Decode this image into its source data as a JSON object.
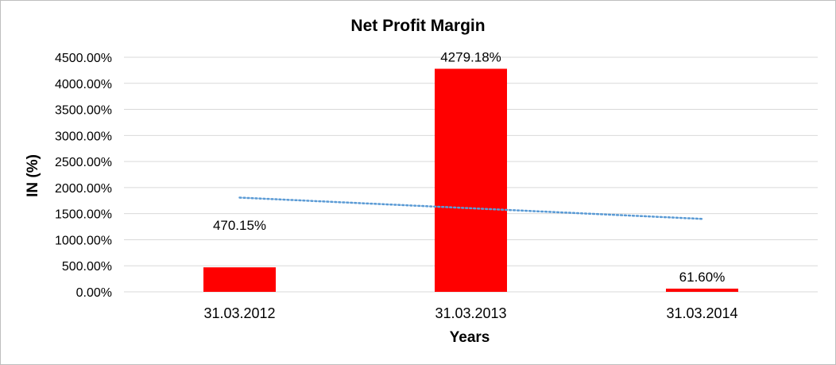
{
  "chart_data": {
    "type": "bar",
    "title": "Net Profit Margin",
    "xlabel": "Years",
    "ylabel": "IN (%)",
    "categories": [
      "31.03.2012",
      "31.03.2013",
      "31.03.2014"
    ],
    "values": [
      470.15,
      4279.18,
      61.6
    ],
    "data_labels": [
      "470.15%",
      "4279.18%",
      "61.60%"
    ],
    "ylim": [
      0,
      4500
    ],
    "yticks": [
      0,
      500,
      1000,
      1500,
      2000,
      2500,
      3000,
      3500,
      4000,
      4500
    ],
    "ytick_labels": [
      "0.00%",
      "500.00%",
      "1000.00%",
      "1500.00%",
      "2000.00%",
      "2500.00%",
      "3000.00%",
      "3500.00%",
      "4000.00%",
      "4500.00%"
    ],
    "grid": true,
    "legend": "none",
    "trendline": {
      "type": "linear",
      "style": "dotted"
    },
    "colors": {
      "bar": "#ff0000",
      "trendline": "#5b9bd5",
      "grid": "#d9d9d9"
    }
  }
}
